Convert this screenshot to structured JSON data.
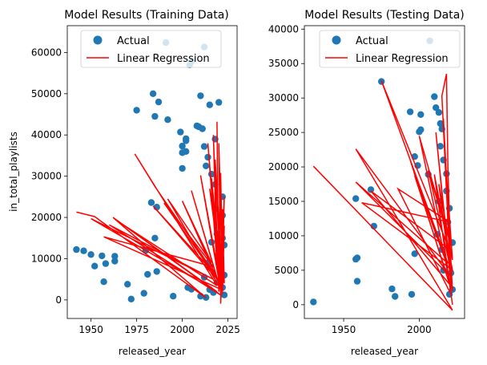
{
  "chart_data": [
    {
      "type": "scatter",
      "title": "Model Results (Training Data)",
      "xlabel": "released_year",
      "ylabel": "in_total_playlists",
      "xlim": [
        1937,
        2030
      ],
      "ylim": [
        -4500,
        66500
      ],
      "xticks": [
        1950,
        1975,
        2000,
        2025
      ],
      "yticks": [
        0,
        10000,
        20000,
        30000,
        40000,
        50000,
        60000
      ],
      "legend": {
        "placement": "top-right",
        "entries": [
          "Actual",
          "Linear Regression"
        ]
      },
      "colors": {
        "points": "#1f77b4",
        "line": "#ff0000"
      },
      "series": [
        {
          "name": "Actual",
          "kind": "points",
          "points": [
            [
              1942,
              12200
            ],
            [
              1946,
              11900
            ],
            [
              1950,
              11000
            ],
            [
              1952,
              8200
            ],
            [
              1956,
              10700
            ],
            [
              1957,
              4400
            ],
            [
              1958,
              8800
            ],
            [
              1963,
              10600
            ],
            [
              1963,
              9400
            ],
            [
              1970,
              3800
            ],
            [
              1972,
              200
            ],
            [
              1975,
              46000
            ],
            [
              1979,
              1600
            ],
            [
              1981,
              6200
            ],
            [
              1984,
              50000
            ],
            [
              1985,
              44500
            ],
            [
              1986,
              6900
            ],
            [
              1987,
              48000
            ],
            [
              1991,
              62400
            ],
            [
              1992,
              43700
            ],
            [
              1995,
              900
            ],
            [
              1999,
              40700
            ],
            [
              2000,
              35700
            ],
            [
              2000,
              37300
            ],
            [
              2000,
              31900
            ],
            [
              2002,
              39100
            ],
            [
              2002,
              36000
            ],
            [
              2002,
              38600
            ],
            [
              2003,
              3000
            ],
            [
              2004,
              57000
            ],
            [
              2005,
              57800
            ],
            [
              2005,
              2600
            ],
            [
              2008,
              42200
            ],
            [
              2009,
              42000
            ],
            [
              2010,
              49500
            ],
            [
              2011,
              41500
            ],
            [
              2012,
              61300
            ],
            [
              2012,
              37200
            ],
            [
              2013,
              32500
            ],
            [
              2014,
              34600
            ],
            [
              2015,
              47300
            ],
            [
              2016,
              30500
            ],
            [
              2018,
              39000
            ],
            [
              2018,
              28000
            ],
            [
              2020,
              47900
            ],
            [
              2010,
              900
            ],
            [
              2013,
              600
            ],
            [
              2015,
              2500
            ],
            [
              2017,
              1800
            ],
            [
              2019,
              4200
            ],
            [
              2021,
              9800
            ],
            [
              2022,
              15000
            ],
            [
              2022,
              20500
            ],
            [
              2022,
              25000
            ],
            [
              2023,
              13300
            ],
            [
              2023,
              6000
            ],
            [
              2023,
              1200
            ],
            [
              2022,
              3000
            ],
            [
              2021,
              6500
            ],
            [
              2020,
              11000
            ],
            [
              2019,
              16000
            ],
            [
              2018,
              22000
            ],
            [
              2016,
              14000
            ],
            [
              2014,
              9000
            ],
            [
              2012,
              5500
            ],
            [
              1983,
              23600
            ],
            [
              1986,
              22500
            ],
            [
              1985,
              15000
            ],
            [
              1980,
              12000
            ]
          ]
        },
        {
          "name": "Linear Regression",
          "kind": "line",
          "points": [
            [
              1942,
              21300
            ],
            [
              1952,
              20200
            ],
            [
              2013,
              500
            ],
            [
              1962,
              20000
            ],
            [
              2019,
              2000
            ],
            [
              1950,
              19700
            ],
            [
              2017,
              5000
            ],
            [
              1960,
              18200
            ],
            [
              2021,
              1200
            ],
            [
              1966,
              18700
            ],
            [
              2019,
              3500
            ],
            [
              1974,
              35400
            ],
            [
              1985,
              27500
            ],
            [
              2018,
              6200
            ],
            [
              1984,
              22800
            ],
            [
              2020,
              4500
            ],
            [
              1990,
              23500
            ],
            [
              2017,
              8000
            ],
            [
              1957,
              15300
            ],
            [
              2021,
              2600
            ],
            [
              1992,
              24500
            ],
            [
              2016,
              9000
            ],
            [
              2000,
              24000
            ],
            [
              2019,
              5200
            ],
            [
              2005,
              26500
            ],
            [
              2021,
              2300
            ],
            [
              2010,
              30200
            ],
            [
              2020,
              6000
            ],
            [
              2014,
              38000
            ],
            [
              2019,
              9000
            ],
            [
              2017,
              40000
            ],
            [
              2020,
              2000
            ],
            [
              2019,
              43200
            ],
            [
              2020,
              3200
            ],
            [
              2021,
              30800
            ],
            [
              2022,
              8000
            ],
            [
              2023,
              25000
            ],
            [
              2021,
              3000
            ],
            [
              2018,
              34000
            ],
            [
              2022,
              5000
            ],
            [
              2020,
              38000
            ],
            [
              2021,
              1500
            ],
            [
              2016,
              29500
            ],
            [
              2022,
              2500
            ],
            [
              2015,
              27000
            ],
            [
              2023,
              4000
            ],
            [
              2022,
              22000
            ],
            [
              2021,
              -900
            ],
            [
              2023,
              18000
            ],
            [
              2022,
              1500
            ]
          ]
        }
      ]
    },
    {
      "type": "scatter",
      "title": "Model Results (Testing Data)",
      "xlabel": "released_year",
      "ylabel": "",
      "xlim": [
        1924,
        2030
      ],
      "ylim": [
        -2000,
        40500
      ],
      "xticks": [
        1950,
        2000
      ],
      "yticks": [
        0,
        5000,
        10000,
        15000,
        20000,
        25000,
        30000,
        35000,
        40000
      ],
      "legend": {
        "placement": "top-right",
        "entries": [
          "Actual",
          "Linear Regression"
        ]
      },
      "colors": {
        "points": "#1f77b4",
        "line": "#ff0000"
      },
      "series": [
        {
          "name": "Actual",
          "kind": "points",
          "points": [
            [
              1930,
              400
            ],
            [
              1958,
              15400
            ],
            [
              1958,
              6600
            ],
            [
              1959,
              6800
            ],
            [
              1959,
              3400
            ],
            [
              1968,
              16700
            ],
            [
              1970,
              11400
            ],
            [
              1975,
              32400
            ],
            [
              1982,
              2300
            ],
            [
              1984,
              1200
            ],
            [
              1994,
              28000
            ],
            [
              1995,
              1500
            ],
            [
              1997,
              21500
            ],
            [
              1997,
              7400
            ],
            [
              1999,
              20200
            ],
            [
              2000,
              25100
            ],
            [
              2001,
              25400
            ],
            [
              2001,
              27600
            ],
            [
              2006,
              18900
            ],
            [
              2007,
              38300
            ],
            [
              2010,
              30200
            ],
            [
              2011,
              28600
            ],
            [
              2013,
              27900
            ],
            [
              2014,
              26300
            ],
            [
              2015,
              25500
            ],
            [
              2012,
              10200
            ],
            [
              2013,
              15000
            ],
            [
              2015,
              8000
            ],
            [
              2016,
              5000
            ],
            [
              2018,
              19000
            ],
            [
              2019,
              12000
            ],
            [
              2020,
              14000
            ],
            [
              2021,
              4600
            ],
            [
              2022,
              2200
            ],
            [
              2022,
              9000
            ],
            [
              2020,
              1500
            ],
            [
              2018,
              16500
            ],
            [
              2016,
              21000
            ],
            [
              2014,
              23000
            ]
          ]
        },
        {
          "name": "Linear Regression",
          "kind": "line",
          "points": [
            [
              1930,
              20100
            ],
            [
              2022,
              -800
            ],
            [
              1958,
              22600
            ],
            [
              2021,
              4000
            ],
            [
              1958,
              17800
            ],
            [
              2019,
              6000
            ],
            [
              1975,
              32500
            ],
            [
              2020,
              8000
            ],
            [
              1968,
              16500
            ],
            [
              2020,
              3000
            ],
            [
              1994,
              21000
            ],
            [
              2019,
              5500
            ],
            [
              1997,
              18700
            ],
            [
              2021,
              2500
            ],
            [
              2000,
              24500
            ],
            [
              2019,
              10000
            ],
            [
              2006,
              19500
            ],
            [
              2020,
              6000
            ],
            [
              2011,
              25000
            ],
            [
              2021,
              3000
            ],
            [
              2015,
              30300
            ],
            [
              2018,
              33500
            ],
            [
              2019,
              20000
            ],
            [
              2021,
              4500
            ],
            [
              2017,
              22000
            ],
            [
              2022,
              6500
            ],
            [
              2013,
              17500
            ],
            [
              2022,
              2000
            ],
            [
              2016,
              27000
            ],
            [
              2021,
              1500
            ],
            [
              1986,
              16800
            ],
            [
              2020,
              12000
            ],
            [
              1962,
              14800
            ],
            [
              2022,
              5000
            ],
            [
              2010,
              18900
            ],
            [
              2022,
              0
            ]
          ]
        }
      ]
    }
  ]
}
